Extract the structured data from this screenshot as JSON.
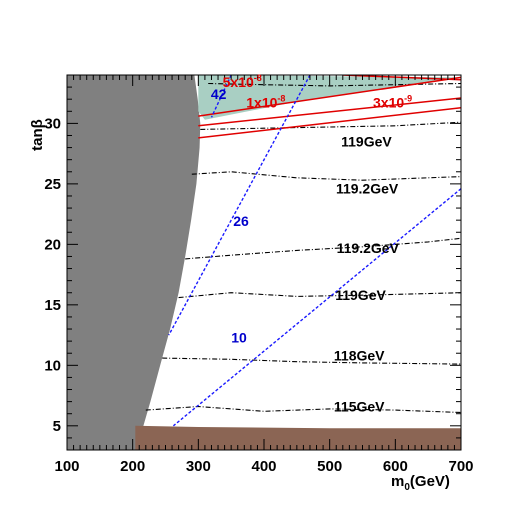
{
  "chart_data": {
    "type": "line",
    "title": "",
    "xlabel": "m",
    "xlabel_sub": "0",
    "xlabel_unit": "(GeV)",
    "ylabel": "tanβ",
    "xlim": [
      100,
      700
    ],
    "ylim": [
      3,
      34
    ],
    "x_ticks": [
      100,
      200,
      300,
      400,
      500,
      600,
      700
    ],
    "y_ticks": [
      5,
      10,
      15,
      20,
      25,
      30
    ],
    "regions": [
      {
        "name": "gray-excluded",
        "color": "#808080",
        "boundary": [
          [
            100,
            34
          ],
          [
            294,
            34
          ],
          [
            299,
            32
          ],
          [
            303,
            30
          ],
          [
            302,
            28
          ],
          [
            297,
            25
          ],
          [
            289,
            22
          ],
          [
            280,
            19
          ],
          [
            270,
            16
          ],
          [
            257,
            13
          ],
          [
            242,
            10
          ],
          [
            227,
            7
          ],
          [
            211,
            4
          ],
          [
            204,
            3
          ],
          [
            100,
            3
          ]
        ]
      },
      {
        "name": "brown-excluded",
        "color": "#8b6554",
        "boundary": [
          [
            204,
            5
          ],
          [
            300,
            4.9
          ],
          [
            500,
            4.8
          ],
          [
            700,
            4.8
          ],
          [
            700,
            3
          ],
          [
            204,
            3
          ]
        ]
      },
      {
        "name": "teal-region",
        "color": "#a9cfc3",
        "boundary": [
          [
            300,
            34
          ],
          [
            700,
            33.8
          ],
          [
            450,
            31.8
          ],
          [
            310,
            30.3
          ],
          [
            300,
            31
          ]
        ]
      }
    ],
    "higgs_contours": [
      {
        "label": "119GeV",
        "points": [
          [
            303,
            29.5
          ],
          [
            400,
            29.6
          ],
          [
            500,
            29.7
          ],
          [
            600,
            29.8
          ],
          [
            700,
            30.1
          ]
        ]
      },
      {
        "label": "119.2GeV",
        "points": [
          [
            290,
            25.8
          ],
          [
            350,
            26
          ],
          [
            450,
            25.5
          ],
          [
            550,
            25.3
          ],
          [
            700,
            25.6
          ]
        ]
      },
      {
        "label": "119.2GeV",
        "points": [
          [
            280,
            18.8
          ],
          [
            350,
            19.1
          ],
          [
            450,
            19.5
          ],
          [
            550,
            19.8
          ],
          [
            650,
            20.2
          ],
          [
            700,
            20.5
          ]
        ]
      },
      {
        "label": "119GeV",
        "points": [
          [
            270,
            15.6
          ],
          [
            350,
            16
          ],
          [
            450,
            15.7
          ],
          [
            550,
            15.8
          ],
          [
            700,
            16
          ]
        ]
      },
      {
        "label": "118GeV",
        "points": [
          [
            245,
            10.6
          ],
          [
            350,
            10.5
          ],
          [
            450,
            10.3
          ],
          [
            550,
            10.2
          ],
          [
            700,
            10.1
          ]
        ]
      },
      {
        "label": "115GeV",
        "points": [
          [
            220,
            6.3
          ],
          [
            300,
            6.6
          ],
          [
            400,
            6.2
          ],
          [
            500,
            6.4
          ],
          [
            600,
            6.3
          ],
          [
            700,
            6.1
          ]
        ]
      },
      {
        "label": "",
        "points": [
          [
            315,
            33.3
          ],
          [
            400,
            33.2
          ],
          [
            500,
            33.1
          ],
          [
            600,
            33.2
          ],
          [
            700,
            33.3
          ]
        ]
      }
    ],
    "blue_contours": [
      {
        "label": "42",
        "points": [
          [
            350,
            34
          ],
          [
            320,
            30.5
          ]
        ]
      },
      {
        "label": "26",
        "points": [
          [
            470,
            34
          ],
          [
            255,
            12.5
          ]
        ]
      },
      {
        "label": "10",
        "points": [
          [
            700,
            24.6
          ],
          [
            262,
            5
          ]
        ]
      }
    ],
    "red_contours": [
      {
        "label": "5x10",
        "exp": "-8",
        "points": [
          [
            300,
            30.6
          ],
          [
            700,
            33.8
          ]
        ]
      },
      {
        "label": "1x10",
        "exp": "-8",
        "points": [
          [
            300,
            29.8
          ],
          [
            700,
            32.1
          ]
        ]
      },
      {
        "label": "3x10",
        "exp": "-9",
        "points": [
          [
            300,
            28.8
          ],
          [
            700,
            31.3
          ]
        ]
      },
      {
        "label": "",
        "exp": "",
        "points": [
          [
            520,
            34
          ],
          [
            700,
            33.6
          ]
        ]
      }
    ],
    "text_labels": [
      {
        "text": "119GeV",
        "x": 556,
        "y": 28.5
      },
      {
        "text": "119.2GeV",
        "x": 557,
        "y": 24.6
      },
      {
        "text": "119.2GeV",
        "x": 558,
        "y": 19.7
      },
      {
        "text": "119GeV",
        "x": 547,
        "y": 15.8
      },
      {
        "text": "118GeV",
        "x": 545,
        "y": 10.8
      },
      {
        "text": "115GeV",
        "x": 545,
        "y": 6.6
      }
    ]
  }
}
